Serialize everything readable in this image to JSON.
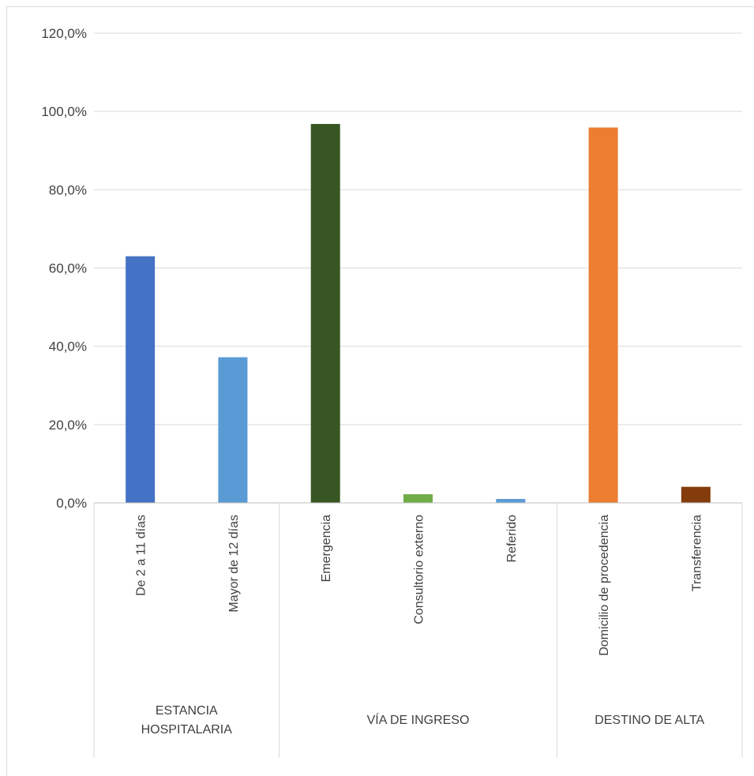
{
  "chart_data": {
    "type": "bar",
    "title": "",
    "xlabel": "",
    "ylabel": "",
    "ylim": [
      0,
      120
    ],
    "yticks": [
      "0,0%",
      "20,0%",
      "40,0%",
      "60,0%",
      "80,0%",
      "100,0%",
      "120,0%"
    ],
    "grid": true,
    "legend": "none",
    "groups": [
      {
        "name": "ESTANCIA HOSPITALARIA",
        "name_lines": [
          "ESTANCIA",
          "HOSPITALARIA"
        ]
      },
      {
        "name": "VÍA DE INGRESO",
        "name_lines": [
          "VÍA DE INGRESO"
        ]
      },
      {
        "name": "DESTINO DE ALTA",
        "name_lines": [
          "DESTINO DE ALTA"
        ]
      }
    ],
    "bars": [
      {
        "category": "De 2 a 11 días",
        "value": 63.0,
        "group": 0,
        "color": "#4472C4"
      },
      {
        "category": "Mayor de 12  días",
        "value": 37.2,
        "group": 0,
        "color": "#5B9BD5"
      },
      {
        "category": "Emergencia",
        "value": 96.8,
        "group": 1,
        "color": "#375623"
      },
      {
        "category": "Consultorio externo",
        "value": 2.2,
        "group": 1,
        "color": "#70AD47"
      },
      {
        "category": "Referido",
        "value": 1.0,
        "group": 1,
        "color": "#5B9BD5"
      },
      {
        "category": "Domicilio de procedencia",
        "value": 95.9,
        "group": 2,
        "color": "#ED7D31"
      },
      {
        "category": "Transferencia",
        "value": 4.1,
        "group": 2,
        "color": "#843C0C"
      }
    ]
  }
}
